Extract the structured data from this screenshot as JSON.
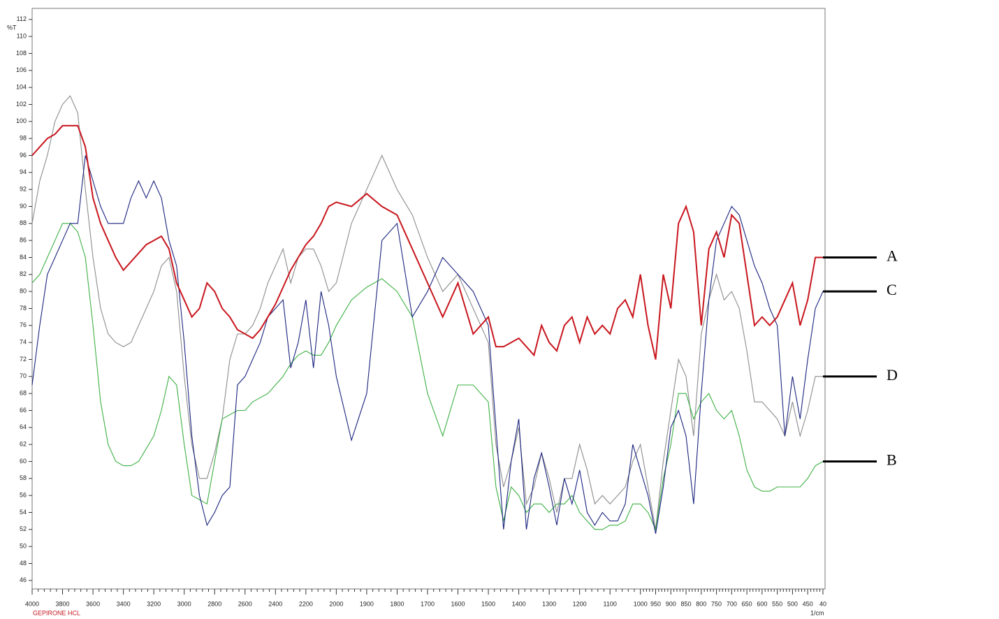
{
  "chart_data": {
    "type": "line",
    "y_label": "%T",
    "x_label": "1/cm",
    "sample_label": "GEPIRONE HCL",
    "xlim": [
      4000,
      393
    ],
    "x_scale_break": 2000,
    "ylim": [
      45,
      113.3
    ],
    "xticks": [
      4000,
      3800,
      3600,
      3400,
      3200,
      3000,
      2800,
      2600,
      2400,
      2200,
      2000,
      1900,
      1800,
      1700,
      1600,
      1500,
      1400,
      1300,
      1200,
      1100,
      1000,
      950,
      900,
      850,
      800,
      750,
      700,
      650,
      600,
      550,
      500,
      450,
      {
        "value": 400,
        "label": "40"
      }
    ],
    "yticks": [
      46,
      48,
      50,
      52,
      54,
      56,
      58,
      60,
      62,
      64,
      66,
      68,
      70,
      72,
      74,
      76,
      78,
      80,
      82,
      84,
      86,
      88,
      90,
      92,
      94,
      96,
      98,
      100,
      102,
      104,
      106,
      108,
      110,
      112
    ],
    "x": [
      4000,
      3950,
      3900,
      3850,
      3800,
      3750,
      3700,
      3650,
      3600,
      3550,
      3500,
      3450,
      3400,
      3350,
      3300,
      3250,
      3200,
      3150,
      3100,
      3050,
      3000,
      2950,
      2900,
      2850,
      2800,
      2750,
      2700,
      2650,
      2600,
      2550,
      2500,
      2450,
      2400,
      2350,
      2300,
      2250,
      2200,
      2150,
      2100,
      2050,
      2000,
      1950,
      1900,
      1850,
      1800,
      1750,
      1700,
      1650,
      1600,
      1550,
      1500,
      1475,
      1450,
      1425,
      1400,
      1375,
      1350,
      1325,
      1300,
      1275,
      1250,
      1225,
      1200,
      1175,
      1150,
      1125,
      1100,
      1075,
      1050,
      1025,
      1000,
      975,
      950,
      925,
      900,
      875,
      850,
      825,
      800,
      775,
      750,
      725,
      700,
      675,
      650,
      625,
      600,
      575,
      550,
      525,
      500,
      475,
      450,
      425,
      400
    ],
    "series": [
      {
        "name": "D",
        "color": "#8c8c8c",
        "values": [
          88,
          93,
          96,
          100,
          102,
          103,
          101,
          92,
          84,
          78,
          75,
          74,
          73.5,
          74,
          76,
          78,
          80,
          83,
          84,
          80,
          70,
          62,
          58,
          58,
          61,
          65,
          72,
          75,
          75,
          76,
          78,
          81,
          83,
          85,
          81,
          84,
          85,
          85,
          83,
          80,
          81,
          88,
          92,
          96,
          92,
          89,
          84,
          80,
          82,
          78,
          74,
          62,
          57,
          60,
          64,
          55,
          57,
          61,
          58,
          54,
          58,
          58,
          62,
          59,
          55,
          56,
          55,
          56,
          57,
          60,
          62,
          57,
          52,
          60,
          66,
          72,
          70,
          63,
          75,
          79,
          82,
          79,
          80,
          78,
          73,
          67,
          67,
          66,
          65,
          63,
          67,
          63,
          66,
          70,
          70
        ]
      },
      {
        "name": "B",
        "color": "#3cb043",
        "values": [
          81,
          82,
          84,
          86,
          88,
          88,
          87,
          84,
          76,
          67,
          62,
          60,
          59.5,
          59.5,
          60,
          61.5,
          63,
          66,
          70,
          69,
          62,
          56,
          55.5,
          55,
          60,
          65,
          65.5,
          66,
          66,
          67,
          67.5,
          68,
          69,
          70,
          71.5,
          72.5,
          73,
          72.5,
          72.5,
          74,
          76,
          79,
          80.5,
          81.5,
          80,
          77,
          68,
          63,
          69,
          69,
          67,
          57,
          53,
          57,
          56,
          54,
          55,
          55,
          54,
          55,
          55,
          56,
          54,
          53,
          52,
          52,
          52.5,
          52.5,
          53,
          55,
          55,
          54,
          52,
          58,
          62,
          68,
          68,
          65,
          67,
          68,
          66,
          65,
          66,
          63,
          59,
          57,
          56.5,
          56.5,
          57,
          57,
          57,
          57,
          58,
          59.5,
          60
        ]
      },
      {
        "name": "C",
        "color": "#1a237e",
        "values": [
          69,
          76,
          82,
          84,
          86,
          88,
          88,
          96,
          93,
          90,
          88,
          88,
          88,
          91,
          93,
          91,
          93,
          91,
          86,
          83,
          74,
          63,
          56,
          52.5,
          54,
          56,
          57,
          69,
          70,
          72,
          74,
          77,
          78,
          79,
          71,
          74,
          79,
          71,
          80,
          76,
          70,
          62.5,
          68,
          86,
          88,
          77,
          80,
          84,
          82,
          80,
          76,
          64,
          52,
          60,
          65,
          52,
          58,
          61,
          57,
          52.5,
          58,
          55,
          59,
          54,
          52.5,
          54,
          53,
          53,
          55,
          62,
          59,
          56,
          51.5,
          57,
          64,
          66,
          63,
          55,
          68,
          79,
          86,
          88,
          90,
          89,
          86,
          83,
          81,
          78,
          76,
          63,
          70,
          65,
          72,
          78,
          80
        ]
      },
      {
        "name": "A",
        "color": "#c8161d",
        "values": [
          96,
          97,
          98,
          98.5,
          99.5,
          99.5,
          99.5,
          97,
          91,
          88,
          86,
          84,
          82.5,
          83.5,
          84.5,
          85.5,
          86,
          86.5,
          85,
          81,
          79,
          77,
          78,
          81,
          80,
          78,
          77,
          75.5,
          75,
          74.5,
          75.5,
          77,
          78.5,
          80.5,
          82.5,
          84,
          85.5,
          86.5,
          88,
          90,
          90.5,
          90,
          91.5,
          90,
          89,
          85,
          81,
          77,
          81,
          75,
          77,
          73.5,
          73.5,
          74,
          74.5,
          73.5,
          72.5,
          76,
          74,
          73,
          76,
          77,
          74,
          77,
          75,
          76,
          75,
          78,
          79,
          77,
          82,
          76,
          72,
          82,
          78,
          88,
          90,
          87,
          76,
          85,
          87,
          84,
          89,
          88,
          82,
          76,
          77,
          76,
          77,
          79,
          81,
          76,
          79,
          84,
          84
        ]
      }
    ]
  }
}
